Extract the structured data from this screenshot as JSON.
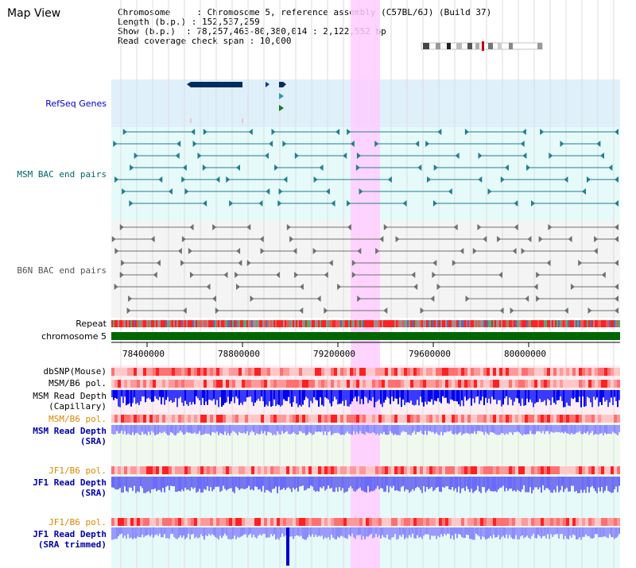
{
  "title": "Map View",
  "info": {
    "line1": "Chromosome     : Chromosome 5, reference assembly (C57BL/6J) (Build 37)",
    "line2": "Length (b.p.) : 152,537,259",
    "line3": "Show (b.p.)  : 78,257,463-80,380,014 : 2,122,552 bp",
    "line4": "Read coverage check span : 10,000"
  },
  "tracks": {
    "refseq": "RefSeq Genes",
    "msm_bac": "MSM BAC end pairs",
    "b6n_bac": "B6N BAC end pairs",
    "repeat": "Repeat",
    "chromosome": "chromosome 5",
    "dbsnp": "dbSNP(Mouse)",
    "msm_b6_pol_1": "MSM/B6 pol.",
    "msm_depth_cap_1": "MSM Read Depth",
    "msm_depth_cap_2": "(Capillary)",
    "msm_b6_pol_2": "MSM/B6 pol.",
    "msm_depth_sra_1": "MSM Read Depth",
    "msm_depth_sra_2": "(SRA)",
    "jf1_b6_pol_1": "JF1/B6 pol.",
    "jf1_depth_sra_1": "JF1 Read Depth",
    "jf1_depth_sra_2": "(SRA)",
    "jf1_b6_pol_2": "JF1/B6 pol.",
    "jf1_depth_trim_1": "JF1 Read Depth",
    "jf1_depth_trim_2": "(SRA trimmed)"
  },
  "axis_ticks": [
    "78400000",
    "78800000",
    "79200000",
    "79600000",
    "80000000"
  ],
  "colors": {
    "refseq_label": "#0000cc",
    "msm_label": "#006666",
    "b6n_label": "#555555",
    "orange_label": "#dd8800",
    "blue_label": "#0000aa",
    "highlight": "#ffccff",
    "chromosome_bar": "#006600"
  }
}
